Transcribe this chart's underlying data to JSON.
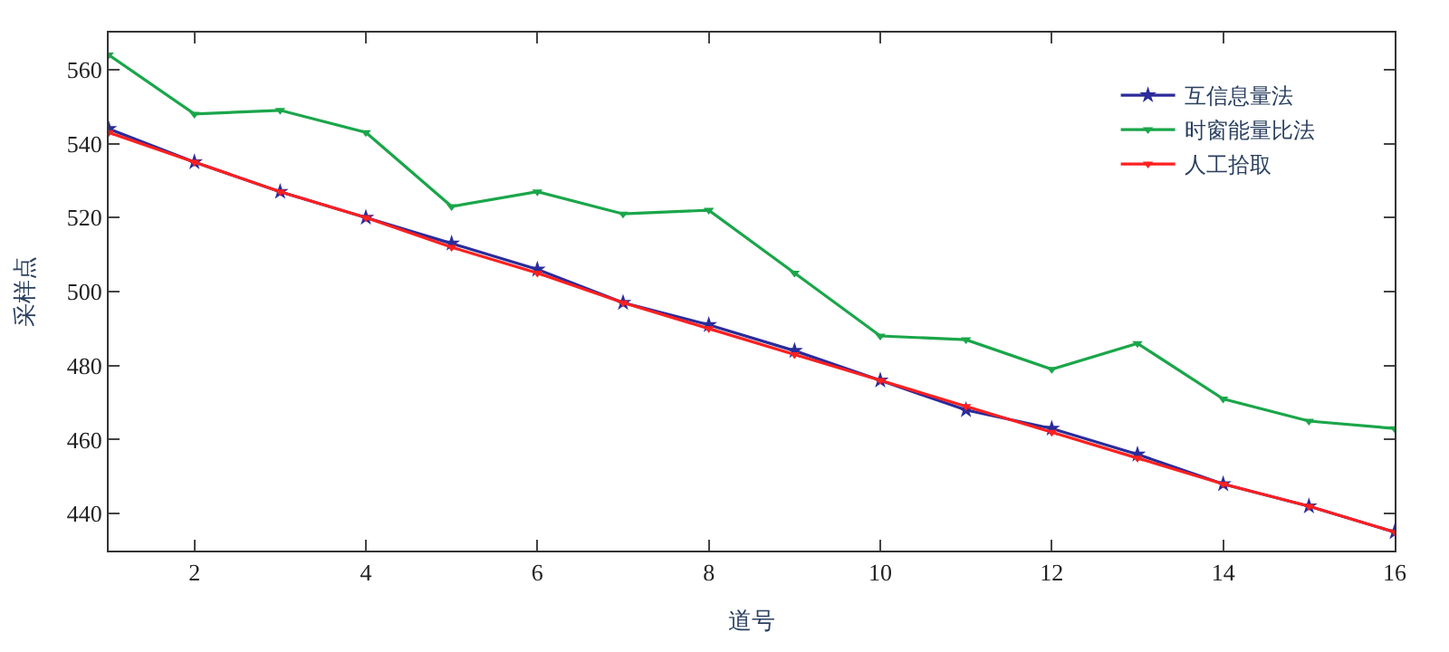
{
  "chart_data": {
    "type": "line",
    "xlabel": "道号",
    "ylabel": "采样点",
    "x": [
      1,
      2,
      3,
      4,
      5,
      6,
      7,
      8,
      9,
      10,
      11,
      12,
      13,
      14,
      15,
      16
    ],
    "series": [
      {
        "name": "互信息量法",
        "color": "#2b2b9a",
        "marker": "star",
        "values": [
          544,
          535,
          527,
          520,
          513,
          506,
          497,
          491,
          484,
          476,
          468,
          463,
          456,
          448,
          442,
          435
        ]
      },
      {
        "name": "时窗能量比法",
        "color": "#1aa64a",
        "marker": "triangle",
        "values": [
          564,
          548,
          549,
          543,
          523,
          527,
          521,
          522,
          505,
          488,
          487,
          479,
          486,
          471,
          465,
          463
        ]
      },
      {
        "name": "人工拾取",
        "color": "#ff2020",
        "marker": "triangle",
        "values": [
          543,
          535,
          527,
          520,
          512,
          505,
          497,
          490,
          483,
          476,
          469,
          462,
          455,
          448,
          442,
          435
        ]
      }
    ],
    "xlim": [
      1,
      16
    ],
    "xticks": [
      2,
      4,
      6,
      8,
      10,
      12,
      14,
      16
    ],
    "ylim": [
      430,
      570
    ],
    "yticks": [
      440,
      460,
      480,
      500,
      520,
      540,
      560
    ],
    "legend": "top right",
    "line_style": "solid"
  }
}
